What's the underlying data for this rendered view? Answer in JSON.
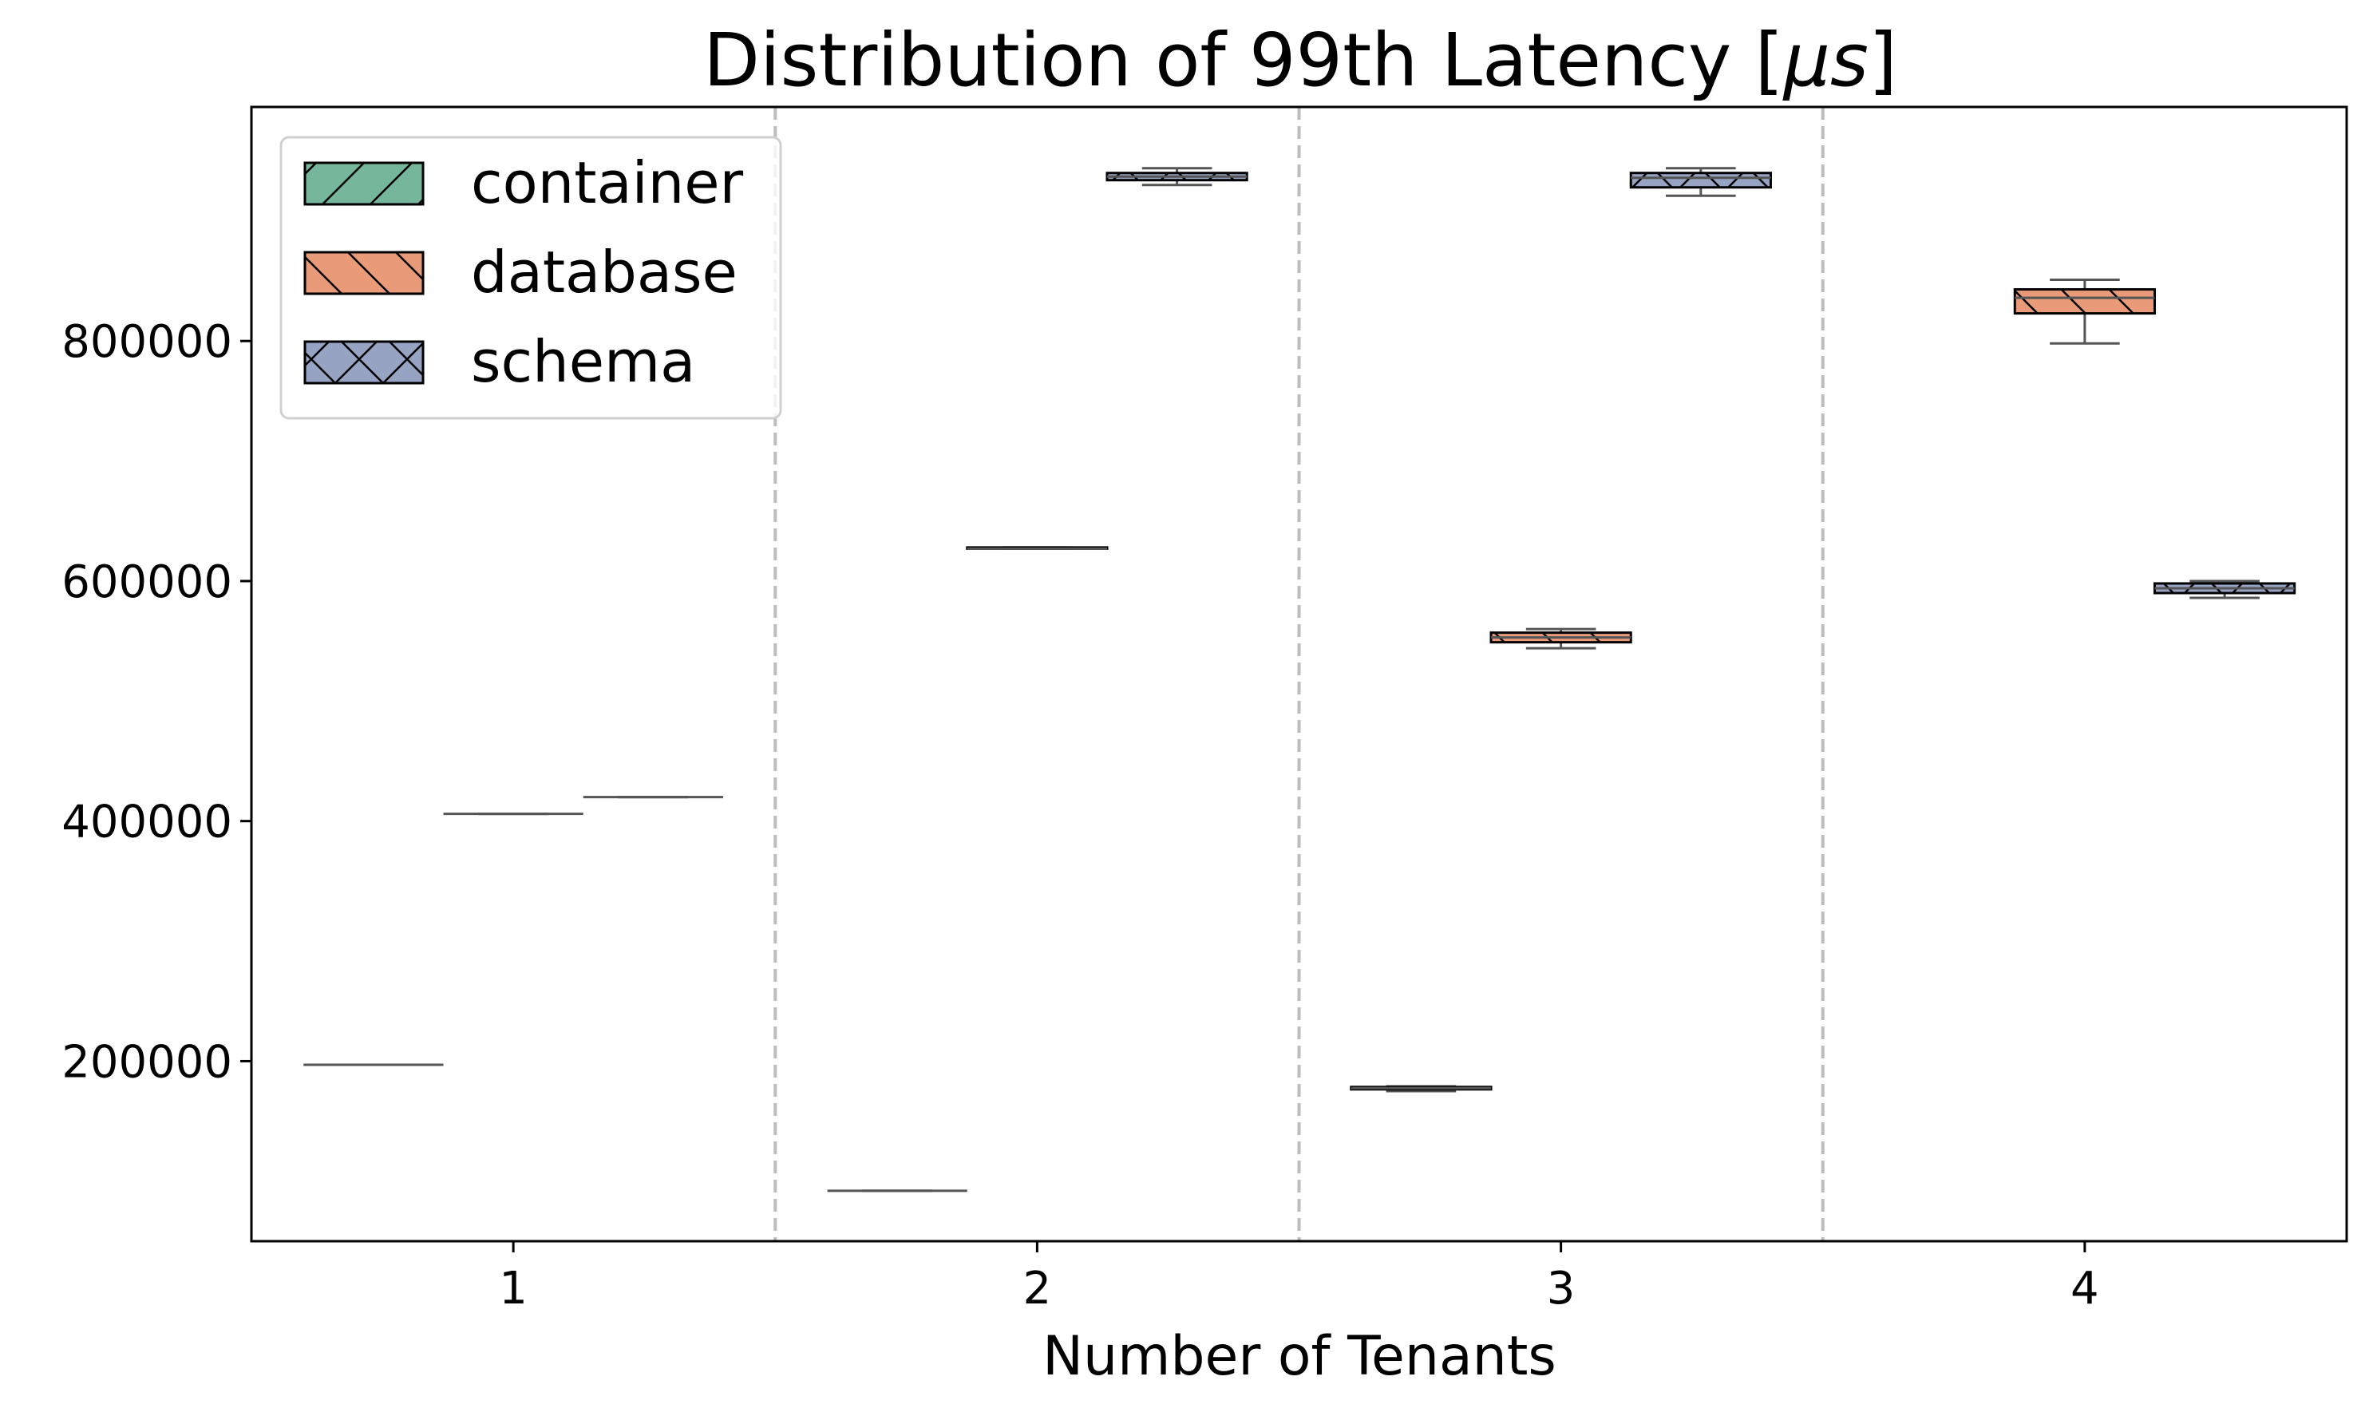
{
  "chart_data": {
    "type": "box",
    "title_main": "Distribution of 99th Latency [",
    "title_symbol": "μs",
    "title_end": "]",
    "xlabel": "Number of Tenants",
    "ylabel": "",
    "categories": [
      "1",
      "2",
      "3",
      "4"
    ],
    "ylim": [
      50000,
      995000
    ],
    "yticks": [
      200000,
      400000,
      600000,
      800000
    ],
    "ytick_labels": [
      "200000",
      "400000",
      "600000",
      "800000"
    ],
    "grid": false,
    "group_separators": true,
    "legend_position": "top-left",
    "series": [
      {
        "name": "container",
        "color": "#76b79c",
        "hatch": "/",
        "boxes": [
          {
            "category": "1",
            "whislo": 197000,
            "q1": 197000,
            "med": 197000,
            "q3": 197000,
            "whishi": 197000
          },
          {
            "category": "2",
            "whislo": 92000,
            "q1": 92000,
            "med": 92000,
            "q3": 92000,
            "whishi": 92000
          },
          {
            "category": "3",
            "whislo": 175000,
            "q1": 176500,
            "med": 177500,
            "q3": 178500,
            "whishi": 179000
          }
        ]
      },
      {
        "name": "database",
        "color": "#e99a78",
        "hatch": "\\",
        "boxes": [
          {
            "category": "1",
            "whislo": 406000,
            "q1": 406000,
            "med": 406000,
            "q3": 406000,
            "whishi": 406000
          },
          {
            "category": "2",
            "whislo": 627000,
            "q1": 627000,
            "med": 627000,
            "q3": 628000,
            "whishi": 628000
          },
          {
            "category": "3",
            "whislo": 544000,
            "q1": 549000,
            "med": 553000,
            "q3": 557000,
            "whishi": 560000
          },
          {
            "category": "4",
            "whislo": 798000,
            "q1": 823000,
            "med": 836000,
            "q3": 843000,
            "whishi": 851000
          }
        ]
      },
      {
        "name": "schema",
        "color": "#97a3c2",
        "hatch": "x",
        "boxes": [
          {
            "category": "1",
            "whislo": 420000,
            "q1": 420000,
            "med": 420000,
            "q3": 420000,
            "whishi": 420000
          },
          {
            "category": "2",
            "whislo": 930000,
            "q1": 934000,
            "med": 937000,
            "q3": 940000,
            "whishi": 944000
          },
          {
            "category": "3",
            "whislo": 921000,
            "q1": 928000,
            "med": 936000,
            "q3": 940000,
            "whishi": 944000
          },
          {
            "category": "4",
            "whislo": 586000,
            "q1": 590000,
            "med": 594000,
            "q3": 598000,
            "whishi": 600000
          }
        ]
      }
    ]
  }
}
